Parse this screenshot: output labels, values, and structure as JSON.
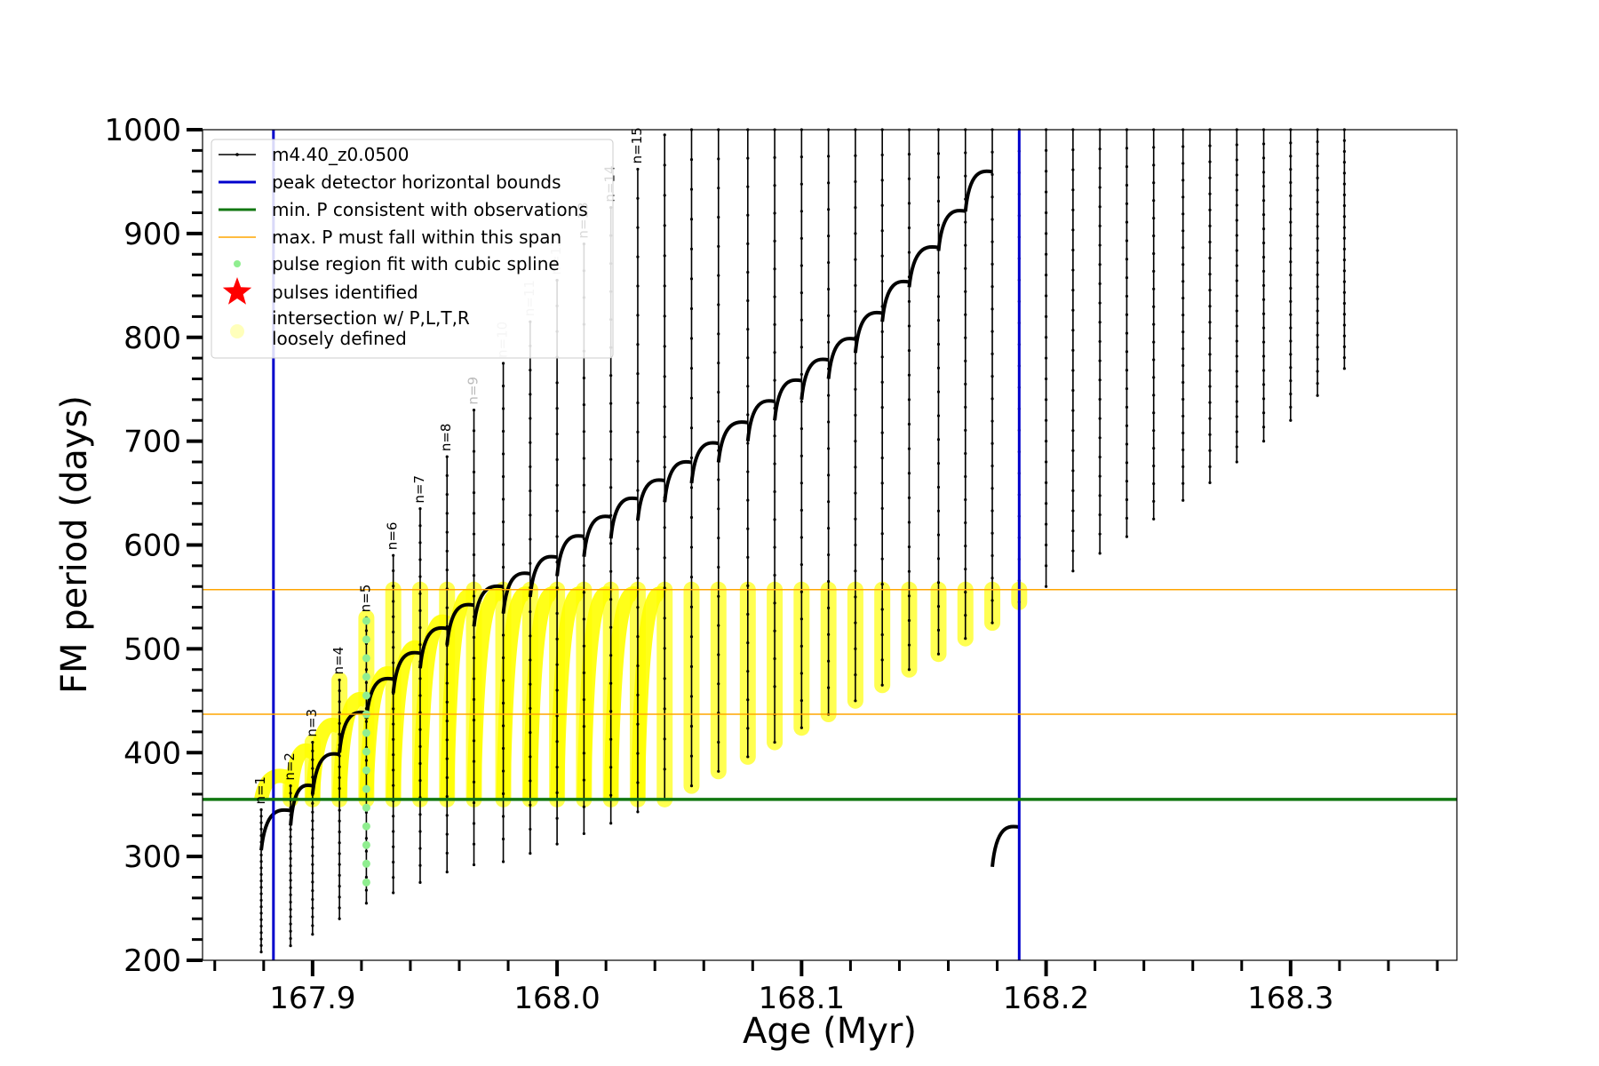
{
  "chart_data": {
    "type": "line",
    "title": "",
    "xlabel": "Age (Myr)",
    "ylabel": "FM period (days)",
    "xlim": [
      167.855,
      168.368
    ],
    "ylim": [
      200,
      1000
    ],
    "xticks": [
      167.9,
      168.0,
      168.1,
      168.2,
      168.3
    ],
    "xtick_labels": [
      "167.9",
      "168.0",
      "168.1",
      "168.2",
      "168.3"
    ],
    "yticks": [
      200,
      300,
      400,
      500,
      600,
      700,
      800,
      900,
      1000
    ],
    "ytick_labels": [
      "200",
      "300",
      "400",
      "500",
      "600",
      "700",
      "800",
      "900",
      "1000"
    ],
    "grid": false,
    "legend_position": "top-left",
    "legend": [
      {
        "label": "m4.40_z0.0500",
        "style": "black-line-dots"
      },
      {
        "label": "peak detector horizontal bounds",
        "style": "blue-line"
      },
      {
        "label": "min. P consistent with observations",
        "style": "green-line"
      },
      {
        "label": "max. P must fall within this span",
        "style": "orange-line"
      },
      {
        "label": "pulse region fit with cubic spline",
        "style": "lightgreen-dot"
      },
      {
        "label": "pulses identified",
        "style": "red-star"
      },
      {
        "label": "intersection w/ P,L,T,R\nloosely defined",
        "style": "yellow-circle"
      }
    ],
    "vertical_lines": [
      {
        "x": 167.884,
        "color": "#0000cc",
        "label": "peak detector horizontal bounds"
      },
      {
        "x": 168.189,
        "color": "#0000cc",
        "label": "peak detector horizontal bounds"
      }
    ],
    "horizontal_lines": [
      {
        "y": 355,
        "color": "#117711",
        "label": "min. P consistent with observations"
      },
      {
        "y": 437,
        "color": "#ffa500",
        "label": "max. P must fall within this span"
      },
      {
        "y": 557,
        "color": "#ffa500",
        "label": "max. P must fall within this span"
      }
    ],
    "pulse_labels": [
      "n=1",
      "n=2",
      "n=3",
      "n=4",
      "n=5",
      "n=6",
      "n=7",
      "n=8",
      "n=9",
      "n=10",
      "n=11",
      "n=12",
      "n=13",
      "n=14",
      "n=15"
    ],
    "series": [
      {
        "name": "m4.40_z0.0500",
        "color": "#000000",
        "pulses": [
          {
            "x": 167.879,
            "peak": 345,
            "trough": 208
          },
          {
            "x": 167.891,
            "peak": 368,
            "trough": 214
          },
          {
            "x": 167.9,
            "peak": 410,
            "trough": 225
          },
          {
            "x": 167.911,
            "peak": 470,
            "trough": 240
          },
          {
            "x": 167.922,
            "peak": 530,
            "trough": 255
          },
          {
            "x": 167.933,
            "peak": 590,
            "trough": 265
          },
          {
            "x": 167.944,
            "peak": 635,
            "trough": 275
          },
          {
            "x": 167.955,
            "peak": 685,
            "trough": 285
          },
          {
            "x": 167.966,
            "peak": 730,
            "trough": 292
          },
          {
            "x": 167.978,
            "peak": 775,
            "trough": 295
          },
          {
            "x": 167.989,
            "peak": 815,
            "trough": 303
          },
          {
            "x": 168.0,
            "peak": 855,
            "trough": 312
          },
          {
            "x": 168.011,
            "peak": 890,
            "trough": 322
          },
          {
            "x": 168.022,
            "peak": 925,
            "trough": 332
          },
          {
            "x": 168.033,
            "peak": 962,
            "trough": 343
          },
          {
            "x": 168.044,
            "peak": 995,
            "trough": 355
          },
          {
            "x": 168.055,
            "peak": 1000,
            "trough": 368
          },
          {
            "x": 168.066,
            "peak": 1000,
            "trough": 382
          },
          {
            "x": 168.078,
            "peak": 1000,
            "trough": 396
          },
          {
            "x": 168.089,
            "peak": 1000,
            "trough": 410
          },
          {
            "x": 168.1,
            "peak": 1000,
            "trough": 424
          },
          {
            "x": 168.111,
            "peak": 1000,
            "trough": 437
          },
          {
            "x": 168.122,
            "peak": 1000,
            "trough": 450
          },
          {
            "x": 168.133,
            "peak": 1000,
            "trough": 465
          },
          {
            "x": 168.144,
            "peak": 1000,
            "trough": 480
          },
          {
            "x": 168.156,
            "peak": 1000,
            "trough": 495
          },
          {
            "x": 168.167,
            "peak": 1000,
            "trough": 510
          },
          {
            "x": 168.178,
            "peak": 1000,
            "trough": 525
          },
          {
            "x": 168.189,
            "peak": 1000,
            "trough": 545
          },
          {
            "x": 168.2,
            "peak": 1000,
            "trough": 560
          },
          {
            "x": 168.211,
            "peak": 1000,
            "trough": 575
          },
          {
            "x": 168.222,
            "peak": 1000,
            "trough": 592
          },
          {
            "x": 168.233,
            "peak": 1000,
            "trough": 608
          },
          {
            "x": 168.244,
            "peak": 1000,
            "trough": 625
          },
          {
            "x": 168.256,
            "peak": 1000,
            "trough": 643
          },
          {
            "x": 168.267,
            "peak": 1000,
            "trough": 660
          },
          {
            "x": 168.278,
            "peak": 1000,
            "trough": 680
          },
          {
            "x": 168.289,
            "peak": 1000,
            "trough": 700
          },
          {
            "x": 168.3,
            "peak": 1000,
            "trough": 720
          },
          {
            "x": 168.311,
            "peak": 1000,
            "trough": 744
          },
          {
            "x": 168.322,
            "peak": 1000,
            "trough": 770
          }
        ],
        "lower_envelope": [
          {
            "x": 167.878,
            "y": 330
          },
          {
            "x": 167.9,
            "y": 380
          },
          {
            "x": 167.922,
            "y": 460
          },
          {
            "x": 167.944,
            "y": 510
          },
          {
            "x": 167.966,
            "y": 555
          },
          {
            "x": 167.989,
            "y": 580
          },
          {
            "x": 168.011,
            "y": 620
          },
          {
            "x": 168.033,
            "y": 655
          },
          {
            "x": 168.055,
            "y": 690
          },
          {
            "x": 168.078,
            "y": 730
          },
          {
            "x": 168.1,
            "y": 770
          },
          {
            "x": 168.122,
            "y": 810
          },
          {
            "x": 168.144,
            "y": 870
          },
          {
            "x": 168.167,
            "y": 940
          },
          {
            "x": 168.18,
            "y": 990
          }
        ]
      }
    ]
  }
}
